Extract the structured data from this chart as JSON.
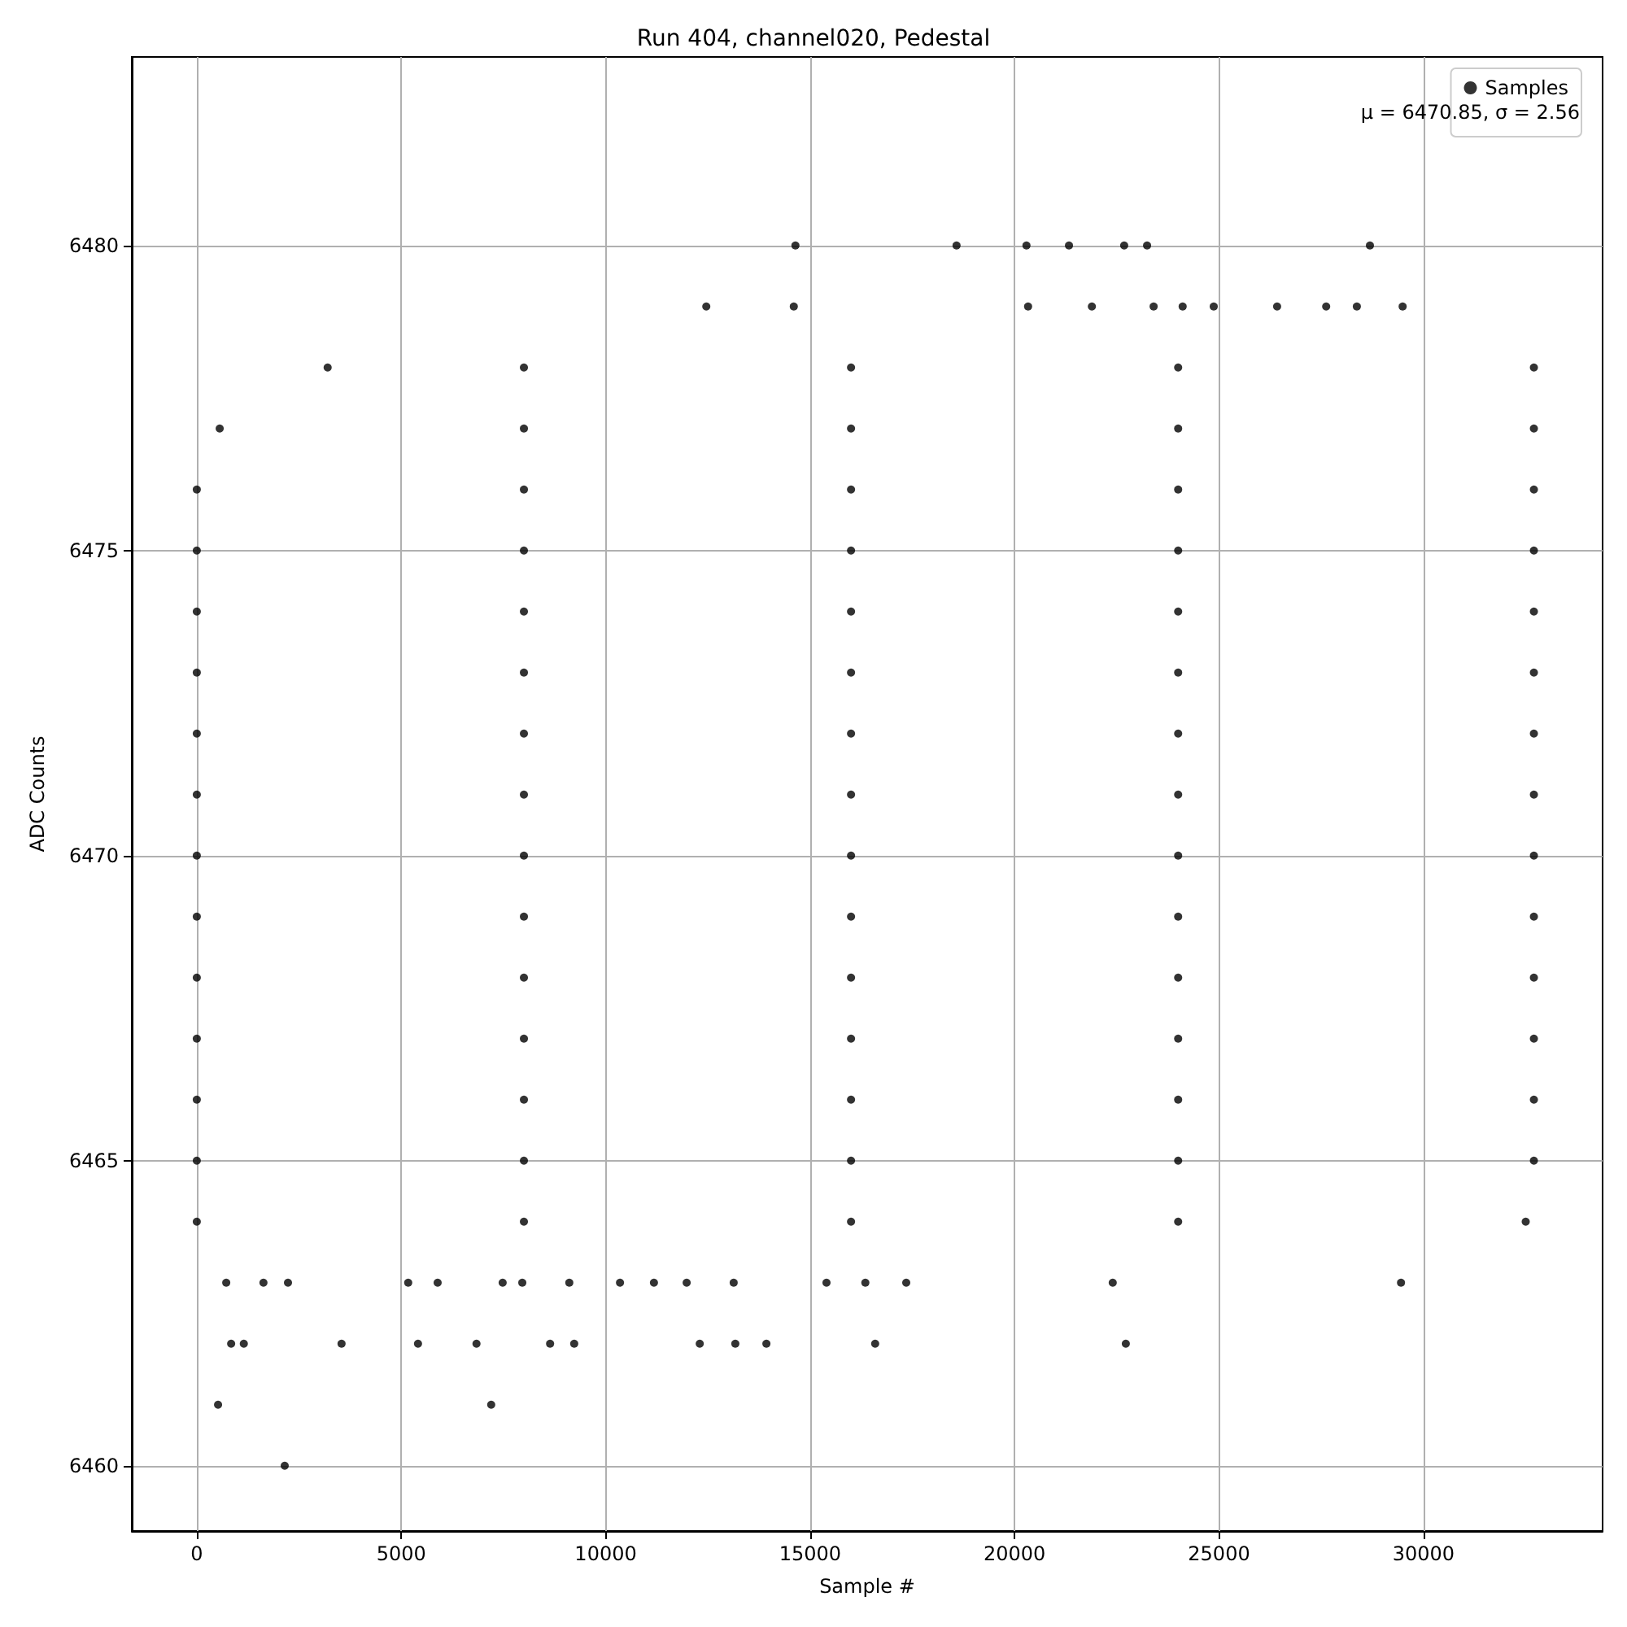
{
  "chart_data": {
    "type": "scatter",
    "title": "Run 404, channel020, Pedestal",
    "xlabel": "Sample #",
    "ylabel": "ADC Counts",
    "annotations": [
      "μ = 6470.85, σ = 2.56"
    ],
    "xlim": [
      -1590,
      34380
    ],
    "xticks": [
      0,
      5000,
      10000,
      15000,
      20000,
      25000,
      30000
    ],
    "ylim": [
      6458.93,
      6483.09
    ],
    "yticks": [
      6460,
      6465,
      6470,
      6475,
      6480
    ],
    "grid": true,
    "legend": "top right",
    "marker": "circle",
    "series": [
      {
        "name": "Samples",
        "color": "#000000",
        "x": [
          2150,
          520,
          7200,
          840,
          1150,
          3540,
          5410,
          6840,
          8640,
          9230,
          12300,
          13170,
          13930,
          16590,
          22720,
          720,
          1630,
          2230,
          5170,
          5890,
          7480,
          7960,
          9110,
          10350,
          11180,
          11980,
          13130,
          15400,
          16350,
          17350,
          22400,
          29450,
          14640,
          18580,
          20290,
          21330,
          22680,
          23240,
          28690,
          12460,
          14600,
          20330,
          21890,
          23400,
          24110,
          24870,
          26420,
          27620,
          28370,
          29490,
          0,
          8000,
          16000,
          24000,
          32500,
          0,
          8000,
          16000,
          24000,
          32700,
          0,
          8000,
          16000,
          24000,
          32700,
          0,
          8000,
          16000,
          24000,
          32700,
          0,
          8000,
          16000,
          24000,
          32700,
          0,
          8000,
          16000,
          24000,
          32700,
          0,
          8000,
          16000,
          24000,
          32700,
          0,
          8000,
          16000,
          24000,
          32700,
          0,
          8000,
          16000,
          24000,
          32700,
          0,
          8000,
          16000,
          24000,
          32700,
          0,
          8000,
          16000,
          24000,
          32700,
          0,
          8000,
          16000,
          24000,
          32700,
          0,
          8000,
          16000,
          24000,
          32700,
          560,
          8000,
          16000,
          24000,
          32700,
          3200,
          8000,
          16000,
          24000,
          32700
        ],
        "values": [
          6460,
          6461,
          6461,
          6462,
          6462,
          6462,
          6462,
          6462,
          6462,
          6462,
          6462,
          6462,
          6462,
          6462,
          6462,
          6463,
          6463,
          6463,
          6463,
          6463,
          6463,
          6463,
          6463,
          6463,
          6463,
          6463,
          6463,
          6463,
          6463,
          6463,
          6463,
          6463,
          6480,
          6480,
          6480,
          6480,
          6480,
          6480,
          6480,
          6479,
          6479,
          6479,
          6479,
          6479,
          6479,
          6479,
          6479,
          6479,
          6479,
          6479,
          6464,
          6464,
          6464,
          6464,
          6464,
          6465,
          6465,
          6465,
          6465,
          6465,
          6466,
          6466,
          6466,
          6466,
          6466,
          6467,
          6467,
          6467,
          6467,
          6467,
          6468,
          6468,
          6468,
          6468,
          6468,
          6469,
          6469,
          6469,
          6469,
          6469,
          6470,
          6470,
          6470,
          6470,
          6470,
          6471,
          6471,
          6471,
          6471,
          6471,
          6472,
          6472,
          6472,
          6472,
          6472,
          6473,
          6473,
          6473,
          6473,
          6473,
          6474,
          6474,
          6474,
          6474,
          6474,
          6475,
          6475,
          6475,
          6475,
          6475,
          6476,
          6476,
          6476,
          6476,
          6476,
          6477,
          6477,
          6477,
          6477,
          6477,
          6478,
          6478,
          6478,
          6478,
          6478
        ]
      }
    ]
  }
}
